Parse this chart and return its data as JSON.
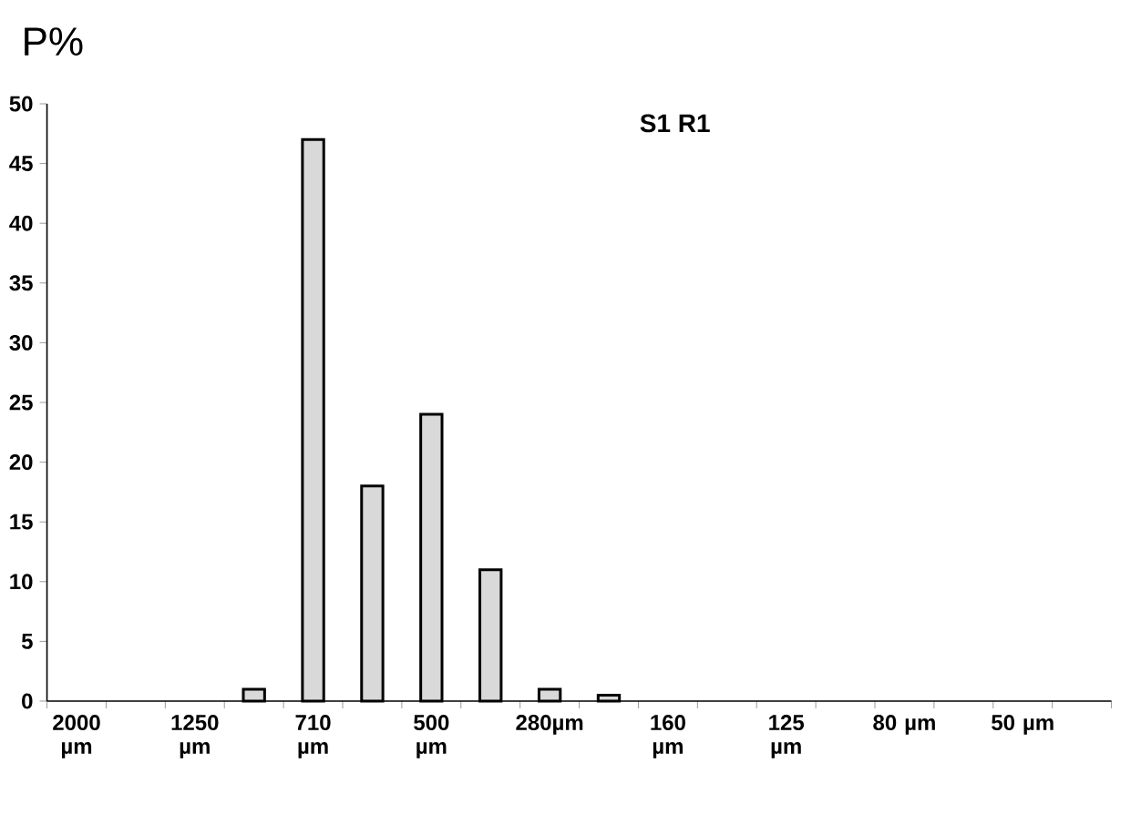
{
  "chart_data": {
    "type": "bar",
    "title": "S1 R1",
    "ylabel": "P%",
    "categories": [
      "2000 µm",
      null,
      "1250 µm",
      null,
      "710 µm",
      null,
      "500 µm",
      null,
      "280µm",
      null,
      "160 µm",
      null,
      "125 µm",
      null,
      "80 µm",
      null,
      "50 µm",
      null
    ],
    "values": [
      null,
      null,
      null,
      1,
      47,
      18,
      24,
      11,
      1,
      0.5,
      null,
      null,
      null,
      null,
      null,
      null,
      null,
      null
    ],
    "color": "#d9d9d9",
    "ylim": [
      0,
      50
    ],
    "yticks": [
      0,
      5,
      10,
      15,
      20,
      25,
      30,
      35,
      40,
      45,
      50
    ]
  }
}
